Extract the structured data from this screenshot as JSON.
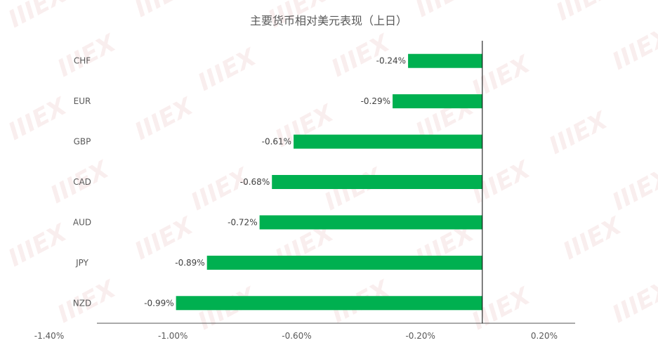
{
  "chart_data": {
    "type": "bar",
    "orientation": "horizontal",
    "title": "主要货币相对美元表现（上日）",
    "categories": [
      "CHF",
      "EUR",
      "GBP",
      "CAD",
      "AUD",
      "JPY",
      "NZD"
    ],
    "values": [
      -0.24,
      -0.29,
      -0.61,
      -0.68,
      -0.72,
      -0.89,
      -0.99
    ],
    "data_labels": [
      "-0.24%",
      "-0.29%",
      "-0.61%",
      "-0.68%",
      "-0.72%",
      "-0.89%",
      "-0.99%"
    ],
    "x_ticks": [
      -1.4,
      -1.0,
      -0.6,
      -0.2,
      0.2
    ],
    "x_tick_labels": [
      "-1.40%",
      "-1.00%",
      "-0.60%",
      "-0.20%",
      "0.20%"
    ],
    "xlim": [
      -1.4,
      0.3
    ],
    "bar_color": "#00b050",
    "grid": false,
    "legend": "none"
  },
  "watermark": "IIIEX"
}
